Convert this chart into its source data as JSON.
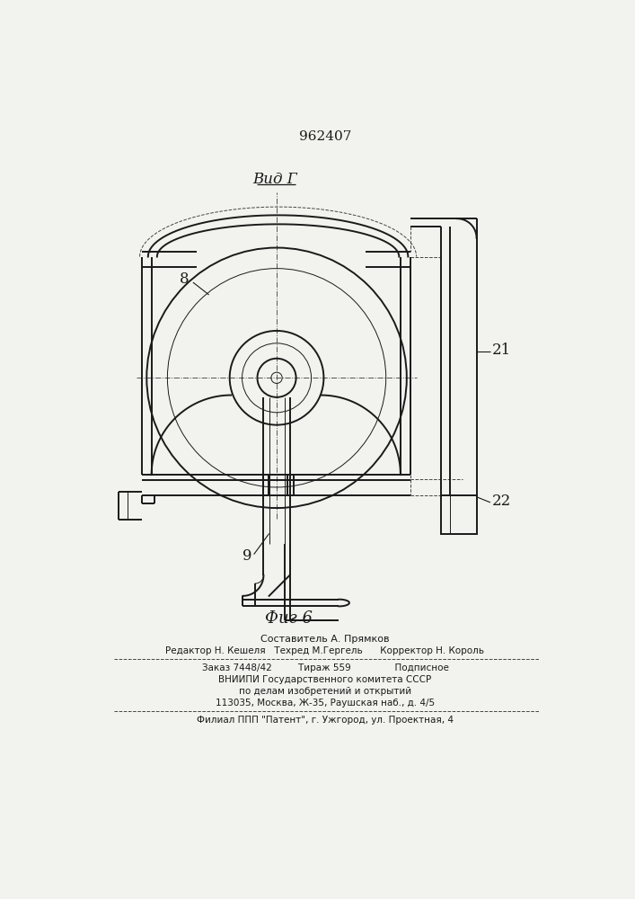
{
  "patent_number": "962407",
  "view_label": "Вид Г",
  "fig_label": "Фиг 6",
  "label_8": "8",
  "label_9": "9",
  "label_21": "21",
  "label_22": "22",
  "footer_line1": "Составитель А. Прямков",
  "footer_line2": "Редактор Н. Кешеля   Техред М.Гергель      Корректор Н. Король",
  "footer_line3": "Заказ 7448/42         Тираж 559               Подписное",
  "footer_line4": "ВНИИПИ Государственного комитета СССР",
  "footer_line5": "по делам изобретений и открытий",
  "footer_line6": "113035, Москва, Ж-35, Раушская наб., д. 4/5",
  "footer_line7": "Филиал ППП \"Патент\", г. Ужгород, ул. Проектная, 4",
  "bg_color": "#f2f2ee",
  "line_color": "#1a1a1a",
  "dash_color": "#444444"
}
